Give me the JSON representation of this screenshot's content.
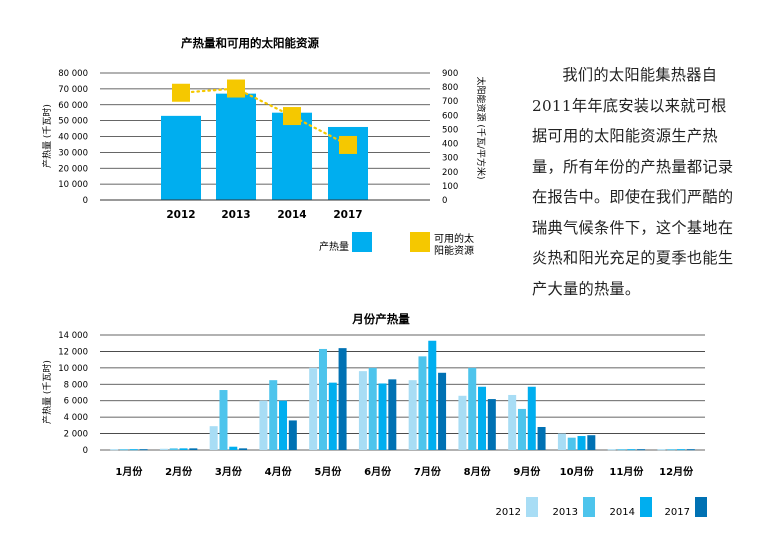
{
  "chart_data": [
    {
      "type": "bar",
      "title": "产热量和可用的太阳能资源",
      "categories": [
        "2012",
        "2013",
        "2014",
        "2017"
      ],
      "series": [
        {
          "name": "产热量",
          "axis": "left",
          "color": "#00aeef",
          "values": [
            53000,
            67000,
            55000,
            46000
          ]
        },
        {
          "name": "可用的太阳能资源",
          "axis": "right",
          "kind": "marker-dotted-line",
          "color": "#f5c800",
          "values": [
            760,
            790,
            595,
            390
          ]
        }
      ],
      "ylabel": "产热量 (千瓦时)",
      "y2label": "太阳能资源 (千瓦/平方米)",
      "ylim": [
        0,
        80000
      ],
      "y2lim": [
        0,
        900
      ],
      "yticks": [
        "80 000",
        "70 000",
        "60 000",
        "50 000",
        "40 000",
        "30 000",
        "20 000",
        "10 000",
        "0"
      ],
      "y2ticks": [
        "900",
        "800",
        "700",
        "600",
        "500",
        "400",
        "300",
        "200",
        "100",
        "0"
      ],
      "legend": [
        {
          "label": "产热量",
          "color": "#00aeef"
        },
        {
          "label": "可用的太阳能资源",
          "lines": [
            "可用的太",
            "阳能资源"
          ],
          "color": "#f5c800"
        }
      ]
    },
    {
      "type": "bar",
      "title": "月份产热量",
      "categories": [
        "1月份",
        "2月份",
        "3月份",
        "4月份",
        "5月份",
        "6月份",
        "7月份",
        "8月份",
        "9月份",
        "10月份",
        "11月份",
        "12月份"
      ],
      "ylabel": "产热量 (千瓦时)",
      "ylim": [
        0,
        14000
      ],
      "yticks": [
        "14 000",
        "12 000",
        "10 000",
        "8 000",
        "6 000",
        "4 000",
        "2 000",
        "0"
      ],
      "series": [
        {
          "name": "2012",
          "color": "#a8ddf5",
          "values": [
            100,
            150,
            2900,
            6000,
            10000,
            9600,
            8500,
            6600,
            6700,
            2000,
            100,
            100
          ]
        },
        {
          "name": "2013",
          "color": "#4dc4ec",
          "values": [
            100,
            200,
            7300,
            8500,
            12300,
            10000,
            11400,
            10000,
            5000,
            1500,
            100,
            100
          ]
        },
        {
          "name": "2014",
          "color": "#00aeef",
          "values": [
            100,
            200,
            400,
            6000,
            8200,
            8100,
            13300,
            7700,
            7700,
            1700,
            100,
            100
          ]
        },
        {
          "name": "2017",
          "color": "#0071b3",
          "values": [
            100,
            200,
            200,
            3600,
            12400,
            8600,
            9400,
            6200,
            2800,
            1800,
            100,
            100
          ]
        }
      ]
    }
  ],
  "paragraph": "我们的太阳能集热器自2011年年底安装以来就可根据可用的太阳能资源生产热量，所有年份的产热量都记录在报告中。即使在我们严酷的瑞典气候条件下，这个基地在炎热和阳光充足的夏季也能生产大量的热量。"
}
